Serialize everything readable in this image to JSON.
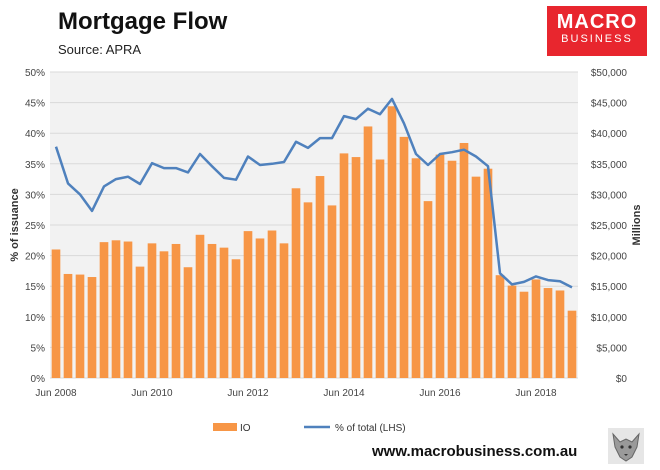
{
  "title": "Mortgage Flow",
  "subtitle": "Source: APRA",
  "logo": {
    "line1": "MACRO",
    "line2": "BUSINESS"
  },
  "footer": "www.macrobusiness.com.au",
  "chart_data": {
    "type": "bar",
    "ylabel": "% of issuance",
    "y2label": "Millions",
    "ylim": [
      0,
      50
    ],
    "y2lim": [
      0,
      50000
    ],
    "y_ticks": [
      "0%",
      "5%",
      "10%",
      "15%",
      "20%",
      "25%",
      "30%",
      "35%",
      "40%",
      "45%",
      "50%"
    ],
    "y2_ticks": [
      "$0",
      "$5,000",
      "$10,000",
      "$15,000",
      "$20,000",
      "$25,000",
      "$30,000",
      "$35,000",
      "$40,000",
      "$45,000",
      "$50,000"
    ],
    "x_ticks": [
      {
        "label": "Jun 2008",
        "index": 0
      },
      {
        "label": "Jun 2010",
        "index": 8
      },
      {
        "label": "Jun 2012",
        "index": 16
      },
      {
        "label": "Jun 2014",
        "index": 24
      },
      {
        "label": "Jun 2016",
        "index": 32
      },
      {
        "label": "Jun 2018",
        "index": 40
      }
    ],
    "grid": true,
    "legend_position": "bottom",
    "colors": {
      "bar": "#f79646",
      "line": "#4f81bd",
      "plot_bg": "#f2f2f2"
    },
    "series": [
      {
        "name": "IO",
        "type": "bar",
        "axis": "right",
        "values": [
          21000,
          17000,
          16900,
          16500,
          22200,
          22500,
          22300,
          18200,
          22000,
          20700,
          21900,
          18100,
          23400,
          21900,
          21300,
          19400,
          24000,
          22800,
          24100,
          22000,
          31000,
          28700,
          33000,
          28200,
          36700,
          36100,
          41100,
          35700,
          44400,
          39400,
          35900,
          28900,
          36500,
          35500,
          38400,
          32900,
          34200,
          16800,
          15100,
          14100,
          16100,
          14700,
          14300,
          11000
        ]
      },
      {
        "name": "% of total (LHS)",
        "type": "line",
        "axis": "left",
        "values": [
          37.8,
          31.8,
          30.0,
          27.3,
          31.3,
          32.5,
          32.9,
          31.7,
          35.1,
          34.3,
          34.3,
          33.6,
          36.6,
          34.6,
          32.7,
          32.4,
          36.2,
          34.8,
          35.0,
          35.3,
          38.6,
          37.6,
          39.2,
          39.2,
          42.8,
          42.3,
          44.0,
          43.1,
          45.6,
          41.6,
          36.6,
          34.8,
          36.6,
          36.9,
          37.3,
          36.2,
          34.6,
          17.1,
          15.3,
          15.7,
          16.6,
          16.0,
          15.8,
          14.8
        ]
      }
    ]
  }
}
